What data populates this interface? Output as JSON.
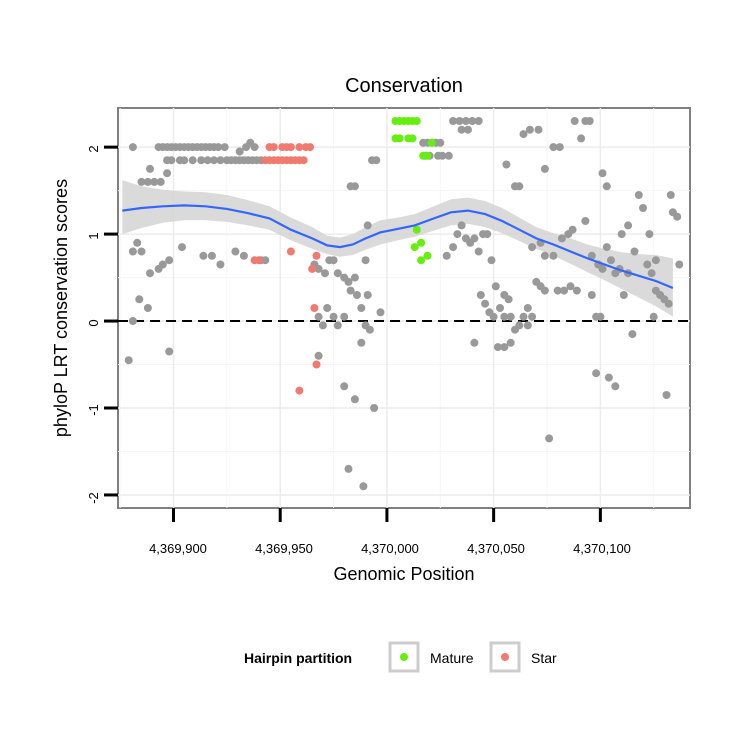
{
  "chart_data": {
    "type": "scatter",
    "title": "Conservation",
    "xlabel": "Genomic Position",
    "ylabel": "phyloP LRT conservation scores",
    "xlim": [
      4369874,
      4370142
    ],
    "ylim": [
      -2.15,
      2.45
    ],
    "x_ticks": [
      {
        "value": 4369900,
        "label": "4,369,900"
      },
      {
        "value": 4369950,
        "label": "4,369,950"
      },
      {
        "value": 4370000,
        "label": "4,370,000"
      },
      {
        "value": 4370050,
        "label": "4,370,050"
      },
      {
        "value": 4370100,
        "label": "4,370,100"
      }
    ],
    "y_ticks": [
      {
        "value": -2,
        "label": "-2"
      },
      {
        "value": -1,
        "label": "-1"
      },
      {
        "value": 0,
        "label": "0"
      },
      {
        "value": 1,
        "label": "1"
      },
      {
        "value": 2,
        "label": "2"
      }
    ],
    "reference_line": {
      "y": 0,
      "style": "dashed"
    },
    "legend": {
      "title": "Hairpin partition",
      "position": "bottom",
      "entries": [
        {
          "label": "Mature",
          "color": "#66ee11"
        },
        {
          "label": "Star",
          "color": "#f07a70"
        }
      ]
    },
    "colors": {
      "other": "#999999",
      "mature": "#66ee11",
      "star": "#f07a70",
      "smooth": "#3366ff",
      "band": "#d3d3d3"
    },
    "series": [
      {
        "name": "Other",
        "points": [
          [
            4369881,
            2.0
          ],
          [
            4369893,
            2.0
          ],
          [
            4369895,
            2.0
          ],
          [
            4369897,
            2.0
          ],
          [
            4369899,
            2.0
          ],
          [
            4369901,
            2.0
          ],
          [
            4369903,
            2.0
          ],
          [
            4369905,
            2.0
          ],
          [
            4369907,
            2.0
          ],
          [
            4369909,
            2.0
          ],
          [
            4369911,
            2.0
          ],
          [
            4369913,
            2.0
          ],
          [
            4369915,
            2.0
          ],
          [
            4369917,
            2.0
          ],
          [
            4369919,
            2.0
          ],
          [
            4369921,
            2.0
          ],
          [
            4369897,
            1.85
          ],
          [
            4369899,
            1.85
          ],
          [
            4369903,
            1.85
          ],
          [
            4369905,
            1.85
          ],
          [
            4369909,
            1.85
          ],
          [
            4369913,
            1.85
          ],
          [
            4369916,
            1.85
          ],
          [
            4369919,
            1.85
          ],
          [
            4369922,
            1.85
          ],
          [
            4369925,
            1.85
          ],
          [
            4369927,
            1.85
          ],
          [
            4369929,
            1.85
          ],
          [
            4369931,
            1.85
          ],
          [
            4369933,
            1.85
          ],
          [
            4369935,
            1.85
          ],
          [
            4369937,
            1.85
          ],
          [
            4369939,
            1.85
          ],
          [
            4369941,
            1.85
          ],
          [
            4369924,
            2.0
          ],
          [
            4369931,
            1.95
          ],
          [
            4369934,
            2.0
          ],
          [
            4369938,
            2.0
          ],
          [
            4369936,
            2.05
          ],
          [
            4369889,
            1.75
          ],
          [
            4369885,
            1.6
          ],
          [
            4369888,
            1.6
          ],
          [
            4369891,
            1.6
          ],
          [
            4369894,
            1.6
          ],
          [
            4369897,
            1.7
          ],
          [
            4369881,
            0.8
          ],
          [
            4369883,
            0.9
          ],
          [
            4369885,
            0.8
          ],
          [
            4369889,
            0.55
          ],
          [
            4369893,
            0.6
          ],
          [
            4369895,
            0.65
          ],
          [
            4369898,
            0.7
          ],
          [
            4369904,
            0.85
          ],
          [
            4369914,
            0.75
          ],
          [
            4369918,
            0.75
          ],
          [
            4369922,
            0.65
          ],
          [
            4369929,
            0.8
          ],
          [
            4369933,
            0.75
          ],
          [
            4369941,
            0.7
          ],
          [
            4369943,
            0.7
          ],
          [
            4369884,
            0.25
          ],
          [
            4369888,
            0.15
          ],
          [
            4369881,
            0.0
          ],
          [
            4369879,
            -0.45
          ],
          [
            4369898,
            -0.35
          ],
          [
            4369966,
            0.65
          ],
          [
            4369968,
            0.6
          ],
          [
            4369971,
            0.55
          ],
          [
            4369973,
            0.7
          ],
          [
            4369975,
            0.7
          ],
          [
            4369977,
            0.55
          ],
          [
            4369980,
            0.5
          ],
          [
            4369982,
            0.45
          ],
          [
            4369985,
            0.5
          ],
          [
            4369968,
            0.05
          ],
          [
            4369970,
            -0.05
          ],
          [
            4369972,
            0.15
          ],
          [
            4369975,
            0.05
          ],
          [
            4369977,
            -0.05
          ],
          [
            4369980,
            0.05
          ],
          [
            4369983,
            0.35
          ],
          [
            4369986,
            0.3
          ],
          [
            4369988,
            0.15
          ],
          [
            4369990,
            -0.05
          ],
          [
            4369992,
            -0.1
          ],
          [
            4369968,
            -0.4
          ],
          [
            4369980,
            -0.75
          ],
          [
            4369985,
            -0.9
          ],
          [
            4369994,
            -1.0
          ],
          [
            4369982,
            -1.7
          ],
          [
            4369989,
            -1.9
          ],
          [
            4369983,
            1.55
          ],
          [
            4369985,
            1.55
          ],
          [
            4369993,
            1.85
          ],
          [
            4369995,
            1.85
          ],
          [
            4369991,
            1.1
          ],
          [
            4369990,
            0.7
          ],
          [
            4369991,
            0.3
          ],
          [
            4369997,
            0.1
          ],
          [
            4369988,
            -0.25
          ],
          [
            4370017,
            2.05
          ],
          [
            4370019,
            2.05
          ],
          [
            4370021,
            2.05
          ],
          [
            4370023,
            2.05
          ],
          [
            4370025,
            2.05
          ],
          [
            4370018,
            1.9
          ],
          [
            4370020,
            1.9
          ],
          [
            4370024,
            1.9
          ],
          [
            4370026,
            1.9
          ],
          [
            4370029,
            1.9
          ],
          [
            4370031,
            2.3
          ],
          [
            4370034,
            2.3
          ],
          [
            4370037,
            2.3
          ],
          [
            4370040,
            2.3
          ],
          [
            4370043,
            2.3
          ],
          [
            4370035,
            2.2
          ],
          [
            4370038,
            2.2
          ],
          [
            4370028,
            0.75
          ],
          [
            4370031,
            0.85
          ],
          [
            4370033,
            1.0
          ],
          [
            4370035,
            1.1
          ],
          [
            4370037,
            0.95
          ],
          [
            4370039,
            0.9
          ],
          [
            4370041,
            0.95
          ],
          [
            4370043,
            0.8
          ],
          [
            4370045,
            1.0
          ],
          [
            4370047,
            1.0
          ],
          [
            4370049,
            0.7
          ],
          [
            4370051,
            0.4
          ],
          [
            4370053,
            0.15
          ],
          [
            4370055,
            0.3
          ],
          [
            4370057,
            0.25
          ],
          [
            4370044,
            0.3
          ],
          [
            4370046,
            0.2
          ],
          [
            4370048,
            0.1
          ],
          [
            4370050,
            0.05
          ],
          [
            4370052,
            -0.3
          ],
          [
            4370055,
            -0.3
          ],
          [
            4370058,
            -0.25
          ],
          [
            4370060,
            -0.1
          ],
          [
            4370062,
            -0.05
          ],
          [
            4370058,
            0.05
          ],
          [
            4370041,
            -0.25
          ],
          [
            4370055,
            0.05
          ],
          [
            4370064,
            0.05
          ],
          [
            4370066,
            -0.05
          ],
          [
            4370056,
            1.8
          ],
          [
            4370060,
            1.55
          ],
          [
            4370062,
            1.55
          ],
          [
            4370064,
            2.15
          ],
          [
            4370067,
            2.2
          ],
          [
            4370071,
            2.2
          ],
          [
            4370074,
            1.75
          ],
          [
            4370078,
            2.0
          ],
          [
            4370081,
            2.0
          ],
          [
            4370088,
            2.3
          ],
          [
            4370091,
            2.1
          ],
          [
            4370093,
            2.3
          ],
          [
            4370095,
            2.3
          ],
          [
            4370068,
            0.85
          ],
          [
            4370072,
            0.9
          ],
          [
            4370074,
            0.75
          ],
          [
            4370078,
            0.75
          ],
          [
            4370082,
            0.95
          ],
          [
            4370085,
            1.0
          ],
          [
            4370087,
            1.05
          ],
          [
            4370070,
            0.45
          ],
          [
            4370072,
            0.4
          ],
          [
            4370074,
            0.35
          ],
          [
            4370080,
            0.35
          ],
          [
            4370083,
            0.35
          ],
          [
            4370086,
            0.4
          ],
          [
            4370089,
            0.35
          ],
          [
            4370066,
            0.15
          ],
          [
            4370068,
            0.05
          ],
          [
            4370076,
            -1.35
          ],
          [
            4370093,
            1.15
          ],
          [
            4370096,
            0.75
          ],
          [
            4370099,
            0.65
          ],
          [
            4370101,
            0.6
          ],
          [
            4370103,
            0.85
          ],
          [
            4370105,
            0.7
          ],
          [
            4370107,
            0.55
          ],
          [
            4370109,
            0.6
          ],
          [
            4370111,
            0.3
          ],
          [
            4370113,
            0.55
          ],
          [
            4370098,
            0.05
          ],
          [
            4370100,
            0.05
          ],
          [
            4370096,
            0.3
          ],
          [
            4370098,
            -0.6
          ],
          [
            4370104,
            -0.65
          ],
          [
            4370107,
            -0.75
          ],
          [
            4370115,
            -0.15
          ],
          [
            4370101,
            1.7
          ],
          [
            4370103,
            1.55
          ],
          [
            4370110,
            1.0
          ],
          [
            4370113,
            1.1
          ],
          [
            4370116,
            0.8
          ],
          [
            4370118,
            1.45
          ],
          [
            4370120,
            1.3
          ],
          [
            4370123,
            1.0
          ],
          [
            4370126,
            0.7
          ],
          [
            4370122,
            0.65
          ],
          [
            4370124,
            0.55
          ],
          [
            4370126,
            0.35
          ],
          [
            4370128,
            0.3
          ],
          [
            4370130,
            0.25
          ],
          [
            4370132,
            0.2
          ],
          [
            4370125,
            0.05
          ],
          [
            4370133,
            1.45
          ],
          [
            4370134,
            1.25
          ],
          [
            4370136,
            1.2
          ],
          [
            4370137,
            0.65
          ],
          [
            4370131,
            -0.85
          ]
        ]
      },
      {
        "name": "Mature",
        "points": [
          [
            4370004,
            2.3
          ],
          [
            4370006,
            2.3
          ],
          [
            4370008,
            2.3
          ],
          [
            4370010,
            2.3
          ],
          [
            4370012,
            2.3
          ],
          [
            4370014,
            2.3
          ],
          [
            4370004,
            2.1
          ],
          [
            4370006,
            2.1
          ],
          [
            4370010,
            2.1
          ],
          [
            4370012,
            2.1
          ],
          [
            4370017,
            1.9
          ],
          [
            4370019,
            1.9
          ],
          [
            4370021,
            2.05
          ],
          [
            4370013,
            0.85
          ],
          [
            4370016,
            0.9
          ],
          [
            4370014,
            1.05
          ],
          [
            4370016,
            0.7
          ],
          [
            4370019,
            0.75
          ]
        ]
      },
      {
        "name": "Star",
        "points": [
          [
            4369943,
            1.85
          ],
          [
            4369945,
            1.85
          ],
          [
            4369947,
            1.85
          ],
          [
            4369949,
            1.85
          ],
          [
            4369951,
            1.85
          ],
          [
            4369953,
            1.85
          ],
          [
            4369955,
            1.85
          ],
          [
            4369957,
            1.85
          ],
          [
            4369959,
            1.85
          ],
          [
            4369961,
            1.85
          ],
          [
            4369945,
            2.0
          ],
          [
            4369947,
            2.0
          ],
          [
            4369951,
            2.0
          ],
          [
            4369953,
            2.0
          ],
          [
            4369955,
            2.0
          ],
          [
            4369959,
            2.0
          ],
          [
            4369962,
            2.0
          ],
          [
            4369964,
            2.0
          ],
          [
            4369938,
            0.7
          ],
          [
            4369940,
            0.7
          ],
          [
            4369955,
            0.8
          ],
          [
            4369965,
            0.6
          ],
          [
            4369967,
            0.75
          ],
          [
            4369966,
            0.15
          ],
          [
            4369967,
            -0.5
          ],
          [
            4369959,
            -0.8
          ]
        ]
      }
    ],
    "smooth": {
      "x": [
        4369876,
        4369885,
        4369895,
        4369905,
        4369915,
        4369925,
        4369935,
        4369945,
        4369955,
        4369965,
        4369972,
        4369978,
        4369984,
        4369990,
        4369997,
        4370005,
        4370013,
        4370022,
        4370030,
        4370038,
        4370046,
        4370054,
        4370062,
        4370070,
        4370078,
        4370086,
        4370094,
        4370102,
        4370110,
        4370118,
        4370126,
        4370134
      ],
      "y": [
        1.27,
        1.3,
        1.32,
        1.33,
        1.32,
        1.29,
        1.24,
        1.18,
        1.05,
        0.95,
        0.87,
        0.85,
        0.88,
        0.95,
        1.02,
        1.06,
        1.1,
        1.18,
        1.25,
        1.27,
        1.23,
        1.15,
        1.05,
        0.95,
        0.88,
        0.8,
        0.72,
        0.65,
        0.58,
        0.52,
        0.46,
        0.38
      ],
      "lower": [
        1.0,
        1.07,
        1.13,
        1.16,
        1.16,
        1.14,
        1.1,
        1.05,
        0.93,
        0.83,
        0.77,
        0.74,
        0.76,
        0.82,
        0.88,
        0.93,
        0.97,
        1.04,
        1.1,
        1.12,
        1.08,
        1.01,
        0.92,
        0.83,
        0.75,
        0.66,
        0.56,
        0.47,
        0.37,
        0.27,
        0.17,
        0.05
      ],
      "upper": [
        1.62,
        1.55,
        1.51,
        1.49,
        1.48,
        1.45,
        1.39,
        1.32,
        1.19,
        1.08,
        0.98,
        0.96,
        1.0,
        1.08,
        1.16,
        1.19,
        1.23,
        1.32,
        1.4,
        1.42,
        1.38,
        1.3,
        1.19,
        1.08,
        1.01,
        0.95,
        0.88,
        0.83,
        0.79,
        0.77,
        0.76,
        0.72
      ]
    }
  }
}
